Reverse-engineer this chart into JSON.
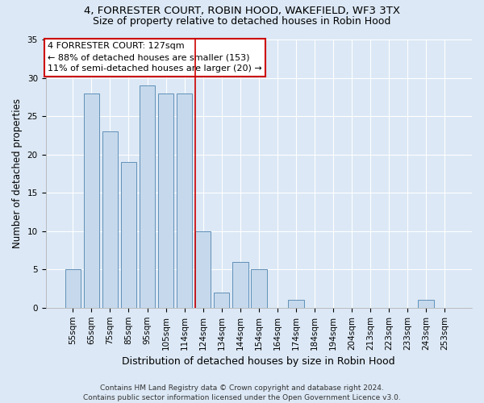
{
  "title1": "4, FORRESTER COURT, ROBIN HOOD, WAKEFIELD, WF3 3TX",
  "title2": "Size of property relative to detached houses in Robin Hood",
  "xlabel": "Distribution of detached houses by size in Robin Hood",
  "ylabel": "Number of detached properties",
  "categories": [
    "55sqm",
    "65sqm",
    "75sqm",
    "85sqm",
    "95sqm",
    "105sqm",
    "114sqm",
    "124sqm",
    "134sqm",
    "144sqm",
    "154sqm",
    "164sqm",
    "174sqm",
    "184sqm",
    "194sqm",
    "204sqm",
    "213sqm",
    "223sqm",
    "233sqm",
    "243sqm",
    "253sqm"
  ],
  "values": [
    5,
    28,
    23,
    19,
    29,
    28,
    28,
    10,
    2,
    6,
    5,
    0,
    1,
    0,
    0,
    0,
    0,
    0,
    0,
    1,
    0
  ],
  "bar_color": "#c6d9ec",
  "bar_edge_color": "#6090b8",
  "vline_x": 7.0,
  "vline_color": "#cc0000",
  "annotation_lines": [
    "4 FORRESTER COURT: 127sqm",
    "← 88% of detached houses are smaller (153)",
    "11% of semi-detached houses are larger (20) →"
  ],
  "annotation_box_facecolor": "#ffffff",
  "annotation_box_edgecolor": "#cc0000",
  "ylim": [
    0,
    35
  ],
  "yticks": [
    0,
    5,
    10,
    15,
    20,
    25,
    30,
    35
  ],
  "background_color": "#dce8f5",
  "plot_bg_color": "#dce8f5",
  "grid_color": "#ffffff",
  "footer1": "Contains HM Land Registry data © Crown copyright and database right 2024.",
  "footer2": "Contains public sector information licensed under the Open Government Licence v3.0.",
  "title1_fontsize": 9.5,
  "title2_fontsize": 9.0,
  "xlabel_fontsize": 9.0,
  "ylabel_fontsize": 8.5,
  "tick_fontsize": 7.5,
  "annotation_fontsize": 8.0,
  "footer_fontsize": 6.5
}
